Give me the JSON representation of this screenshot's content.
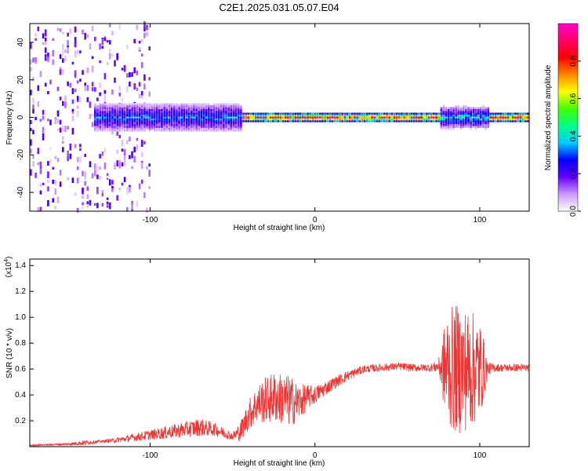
{
  "title": "C2E1.2025.031.05.07.E04",
  "chart_data": [
    {
      "type": "heatmap",
      "xlabel": "Height of straight line (km)",
      "ylabel": "Frequency (Hz)",
      "xlim": [
        -173,
        130
      ],
      "ylim": [
        -50,
        50
      ],
      "x_ticks": [
        -100,
        0,
        100
      ],
      "y_ticks": [
        -40,
        -20,
        0,
        20,
        40
      ],
      "colorbar": {
        "label": "Normalized spectral amplitude",
        "range": [
          0,
          1
        ],
        "ticks": [
          0.0,
          0.2,
          0.4,
          0.6,
          0.8
        ],
        "tick_labels": [
          "0.0",
          "0.2",
          "0.4",
          "0.6",
          "0.8"
        ],
        "colors": [
          "#ffffff",
          "#cc99ff",
          "#6600ff",
          "#0000ff",
          "#00ccff",
          "#00ff88",
          "#44ff00",
          "#ffff00",
          "#ff8800",
          "#ff0000",
          "#ff0066",
          "#ff00cc"
        ]
      },
      "ridge_frequency_hz": 0,
      "regions": [
        {
          "x_range": [
            -173,
            -100
          ],
          "description_level": "scattered low amplitude, broadband",
          "amplitude": 0.12
        },
        {
          "x_range": [
            -135,
            -45
          ],
          "band_halfwidth_hz": 8,
          "amplitude": 0.3
        },
        {
          "x_range": [
            -45,
            130
          ],
          "band_halfwidth_hz": 2,
          "amplitude": 0.85
        },
        {
          "x_range": [
            75,
            105
          ],
          "band_halfwidth_hz": 6,
          "amplitude": 0.35
        }
      ]
    },
    {
      "type": "line",
      "xlabel": "Height of straight line (km)",
      "ylabel": "SNR (10 * v/v)",
      "y_multiplier": "(x10",
      "y_multiplier_exp": "4",
      "y_multiplier_close": ")",
      "xlim": [
        -173,
        130
      ],
      "ylim": [
        0,
        1.45
      ],
      "x_ticks": [
        -100,
        0,
        100
      ],
      "y_ticks": [
        0.2,
        0.4,
        0.6,
        0.8,
        1.0,
        1.2,
        1.4
      ],
      "y_tick_labels": [
        "0.2",
        "0.4",
        "0.6",
        "0.8",
        "1.0",
        "1.2",
        "1.4"
      ],
      "color": "#ee3333",
      "series": [
        {
          "x": [
            -173,
            -150,
            -140,
            -130,
            -120,
            -110,
            -100,
            -90,
            -80,
            -70,
            -60,
            -50,
            -45,
            -40,
            -35,
            -30,
            -25,
            -20,
            -15,
            -10,
            -5,
            0,
            10,
            20,
            30,
            40,
            50,
            60,
            70,
            75,
            80,
            85,
            90,
            95,
            100,
            105,
            110,
            120,
            130
          ],
          "y": [
            0.01,
            0.02,
            0.03,
            0.04,
            0.05,
            0.07,
            0.09,
            0.11,
            0.13,
            0.15,
            0.13,
            0.08,
            0.12,
            0.25,
            0.33,
            0.36,
            0.38,
            0.37,
            0.35,
            0.34,
            0.38,
            0.4,
            0.48,
            0.55,
            0.6,
            0.61,
            0.62,
            0.61,
            0.61,
            0.62,
            0.6,
            0.6,
            0.6,
            0.6,
            0.6,
            0.6,
            0.61,
            0.61,
            0.61
          ],
          "noise_amplitude": [
            0.005,
            0.01,
            0.02,
            0.01,
            0.02,
            0.03,
            0.04,
            0.05,
            0.06,
            0.07,
            0.05,
            0.03,
            0.08,
            0.12,
            0.15,
            0.18,
            0.2,
            0.2,
            0.2,
            0.15,
            0.1,
            0.07,
            0.05,
            0.04,
            0.03,
            0.03,
            0.03,
            0.03,
            0.03,
            0.05,
            0.45,
            0.5,
            0.5,
            0.45,
            0.4,
            0.05,
            0.03,
            0.03,
            0.03
          ]
        }
      ]
    }
  ]
}
